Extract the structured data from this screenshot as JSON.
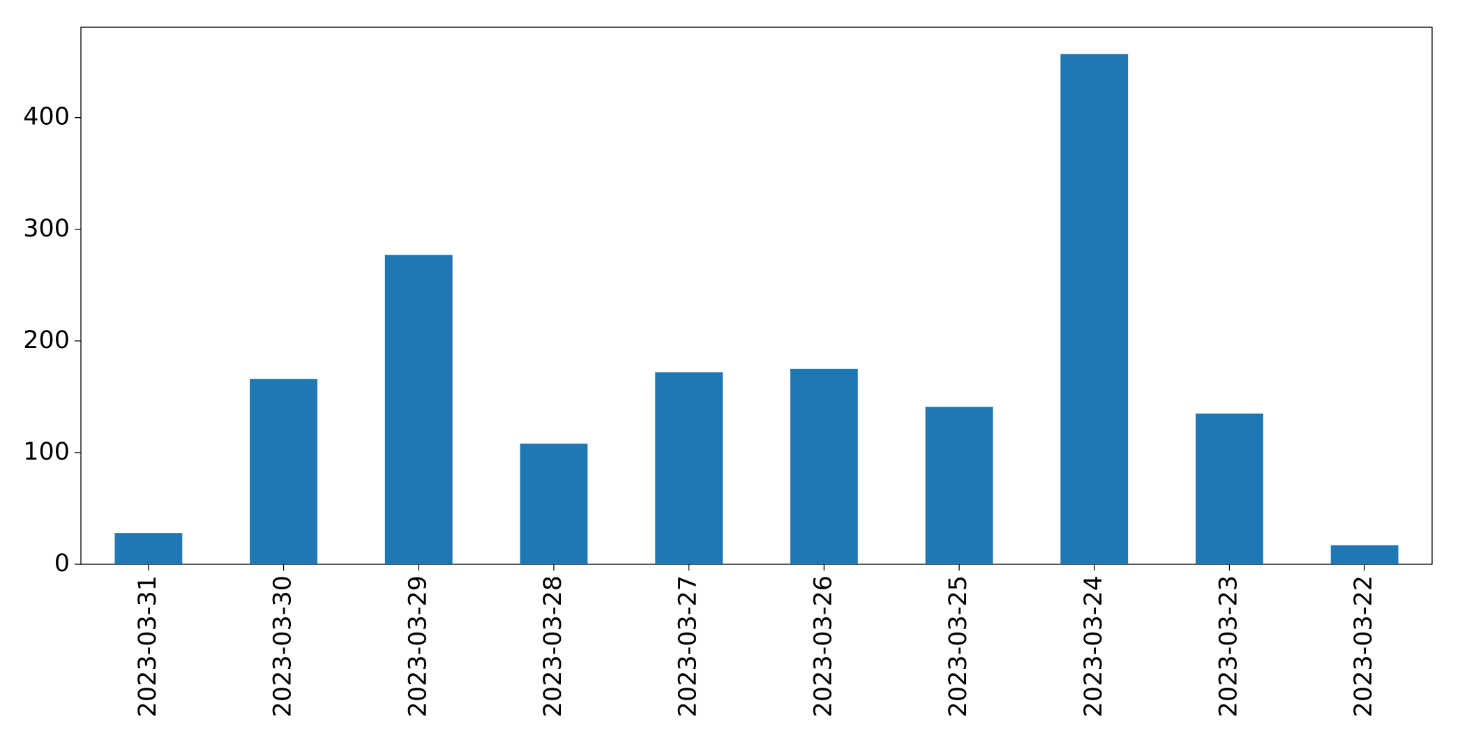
{
  "chart_data": {
    "type": "bar",
    "categories": [
      "2023-03-31",
      "2023-03-30",
      "2023-03-29",
      "2023-03-28",
      "2023-03-27",
      "2023-03-26",
      "2023-03-25",
      "2023-03-24",
      "2023-03-23",
      "2023-03-22"
    ],
    "values": [
      28,
      166,
      277,
      108,
      172,
      175,
      141,
      457,
      135,
      17
    ],
    "color": "#1f77b4",
    "ylim": [
      0,
      481
    ],
    "yticks": [
      0,
      100,
      200,
      300,
      400
    ],
    "grid": false
  }
}
